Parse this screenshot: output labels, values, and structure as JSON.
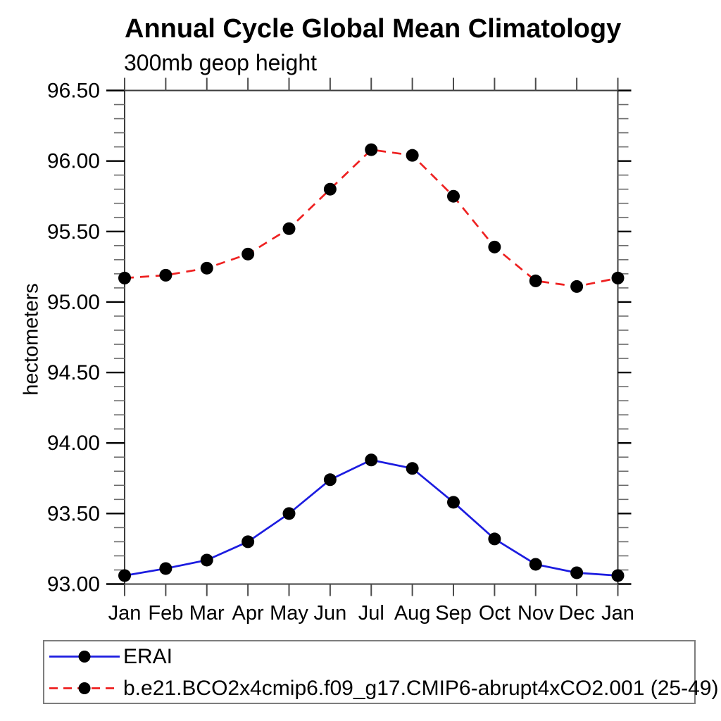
{
  "chart": {
    "region": "annual-cycle-plot"
  },
  "chart_data": {
    "type": "line",
    "title": "Annual Cycle Global Mean Climatology",
    "subtitle": "300mb geop height",
    "xlabel": "",
    "ylabel": "hectometers",
    "categories": [
      "Jan",
      "Feb",
      "Mar",
      "Apr",
      "May",
      "Jun",
      "Jul",
      "Aug",
      "Sep",
      "Oct",
      "Nov",
      "Dec",
      "Jan"
    ],
    "series": [
      {
        "name": "ERAI",
        "color": "#1c1ce0",
        "line_style": "solid",
        "marker": "filled-circle",
        "marker_color": "#000000",
        "values": [
          93.06,
          93.11,
          93.17,
          93.3,
          93.5,
          93.74,
          93.88,
          93.82,
          93.58,
          93.32,
          93.14,
          93.08,
          93.06
        ]
      },
      {
        "name": "b.e21.BCO2x4cmip6.f09_g17.CMIP6-abrupt4xCO2.001 (25-49)",
        "color": "#ee2121",
        "line_style": "dashed",
        "marker": "filled-circle",
        "marker_color": "#000000",
        "values": [
          95.17,
          95.19,
          95.24,
          95.34,
          95.52,
          95.8,
          96.08,
          96.04,
          95.75,
          95.39,
          95.15,
          95.11,
          95.17
        ]
      }
    ],
    "ylim": [
      93.0,
      96.5
    ],
    "ytick_step": 0.5,
    "yminor_step": 0.1,
    "ytick_labels": [
      "93.00",
      "93.50",
      "94.00",
      "94.50",
      "95.00",
      "95.50",
      "96.00",
      "96.50"
    ],
    "grid": false,
    "legend_position": "bottom-left-box"
  }
}
